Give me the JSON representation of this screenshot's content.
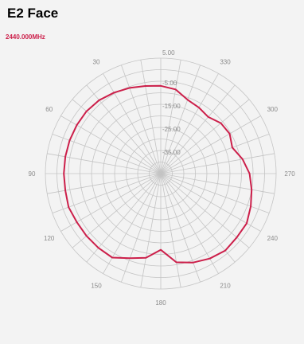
{
  "title": "E2 Face",
  "frequency_label": "2440.000MHz",
  "colors": {
    "trace": "#cc1f4a",
    "grid": "#c4c4c4",
    "background": "#f3f3f3",
    "frequency": "#cc1f4a"
  },
  "chart_data": {
    "type": "polar-line",
    "title": "E2 Face",
    "subtitle": "2440.000MHz",
    "angle_ticks": [
      "0",
      "30",
      "60",
      "90",
      "120",
      "150",
      "180",
      "210",
      "240",
      "270",
      "300",
      "330"
    ],
    "angle_labels_visible": [
      "30",
      "60",
      "90",
      "120",
      "150",
      "180",
      "210",
      "240",
      "270",
      "300",
      "330"
    ],
    "radial_ticks": [
      "5.00",
      "-5.00",
      "-15.00",
      "-25.00",
      "-35.00"
    ],
    "r_range": [
      -45,
      5
    ],
    "angle_step_deg": 10,
    "grid": true,
    "series": [
      {
        "angles_deg": [
          0,
          10,
          20,
          30,
          40,
          50,
          60,
          70,
          80,
          90,
          100,
          110,
          120,
          130,
          140,
          150,
          160,
          170,
          180,
          190,
          200,
          210,
          220,
          230,
          240,
          250,
          260,
          270,
          280,
          290,
          300,
          310,
          320,
          330,
          340,
          350
        ],
        "values": [
          -7,
          -6.5,
          -5.5,
          -4.5,
          -3.5,
          -3,
          -3,
          -3,
          -3,
          -3,
          -3,
          -2.5,
          -3,
          -3,
          -3,
          -3,
          -6,
          -8,
          -12,
          -6,
          -4,
          -2.5,
          -1.5,
          -2,
          -2,
          -3.5,
          -5,
          -6.5,
          -9,
          -12,
          -10.5,
          -11,
          -13,
          -12,
          -11,
          -8
        ]
      }
    ]
  }
}
